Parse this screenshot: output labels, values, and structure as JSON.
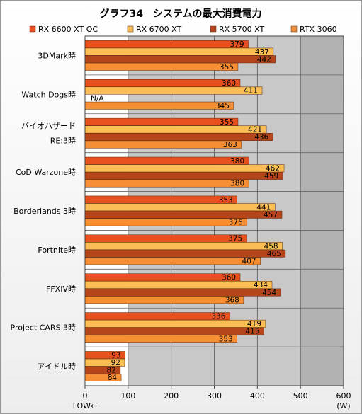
{
  "chart_data": {
    "type": "bar",
    "orientation": "horizontal",
    "title": "グラフ34　システムの最大消費電力",
    "categories": [
      [
        "3DMark時"
      ],
      [
        "Watch Dogs時"
      ],
      [
        "バイオハザード",
        "RE:3時"
      ],
      [
        "CoD Warzone時"
      ],
      [
        "Borderlands 3時"
      ],
      [
        "Fortnite時"
      ],
      [
        "FFXIV時"
      ],
      [
        "Project CARS 3時"
      ],
      [
        "アイドル時"
      ]
    ],
    "series": [
      {
        "name": "RX 6600 XT OC",
        "color": "#e8501f",
        "values": [
          379,
          360,
          355,
          380,
          353,
          375,
          360,
          336,
          93
        ]
      },
      {
        "name": "RX 6700 XT",
        "color": "#fbbe54",
        "values": [
          437,
          411,
          421,
          462,
          441,
          458,
          434,
          419,
          92
        ]
      },
      {
        "name": "RX 5700 XT",
        "color": "#b5461c",
        "values": [
          442,
          null,
          436,
          459,
          457,
          465,
          454,
          415,
          82
        ]
      },
      {
        "name": "RTX 3060",
        "color": "#f68f34",
        "values": [
          355,
          345,
          363,
          380,
          376,
          407,
          368,
          353,
          84
        ]
      }
    ],
    "na_label": "N/A",
    "xlim": [
      0,
      600
    ],
    "xticks": [
      0,
      100,
      200,
      300,
      400,
      500,
      600
    ],
    "x_unit": "(W)",
    "x_direction_label": "LOW←",
    "grid": true,
    "highlight_range": [
      100,
      500
    ],
    "legend_position": "top"
  }
}
